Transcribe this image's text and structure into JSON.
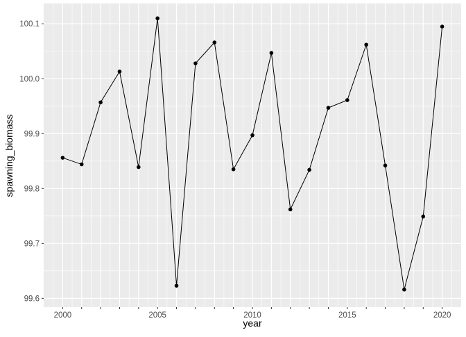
{
  "chart_data": {
    "type": "line",
    "title": "",
    "xlabel": "year",
    "ylabel": "spawning_biomass",
    "x": [
      2000,
      2001,
      2002,
      2003,
      2004,
      2005,
      2006,
      2007,
      2008,
      2009,
      2010,
      2011,
      2012,
      2013,
      2014,
      2015,
      2016,
      2017,
      2018,
      2019,
      2020
    ],
    "y": [
      99.856,
      99.844,
      99.957,
      100.013,
      99.839,
      100.11,
      99.623,
      100.028,
      100.066,
      99.835,
      99.897,
      100.047,
      99.762,
      99.834,
      99.947,
      99.961,
      100.062,
      99.842,
      99.616,
      99.749,
      100.095
    ],
    "xlim": [
      1999,
      2021
    ],
    "ylim": [
      99.584,
      100.137
    ],
    "x_ticks": [
      2000,
      2001,
      2002,
      2003,
      2004,
      2005,
      2006,
      2007,
      2008,
      2009,
      2010,
      2011,
      2012,
      2013,
      2014,
      2015,
      2016,
      2017,
      2018,
      2019,
      2020
    ],
    "x_tick_labels": [
      "2000",
      "2005",
      "2010",
      "2015",
      "2020"
    ],
    "y_tick_labels": [
      "99.6",
      "99.7",
      "99.8",
      "99.9",
      "100.0",
      "100.1"
    ],
    "grid": true,
    "colors": {
      "panel": "#EBEBEB",
      "grid": "#FFFFFF",
      "line": "#000000",
      "point": "#000000",
      "axis_text": "#4D4D4D"
    }
  }
}
